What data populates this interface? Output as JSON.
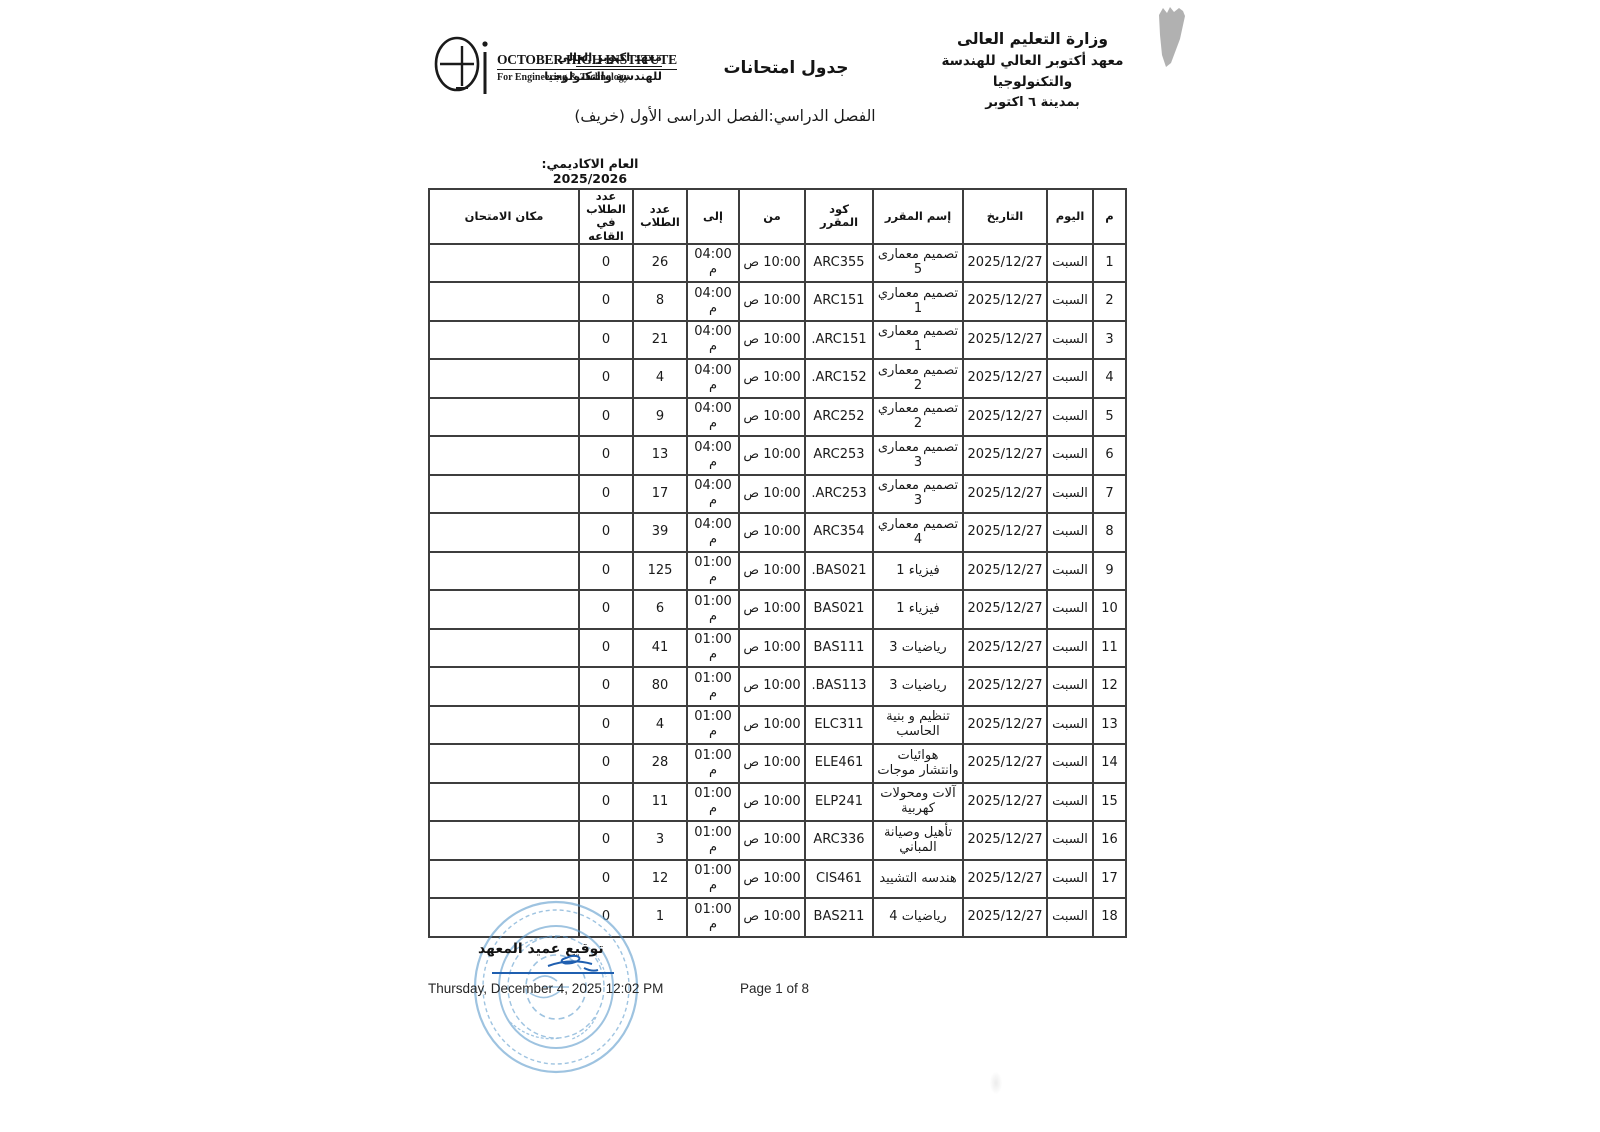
{
  "logo": {
    "name_en": "OCTOBER HIGH INSTITUTE",
    "sub_en": "For Engineering & Technology",
    "name_ar1": "معهد اكتوبر العالى",
    "name_ar2": "للهندسة والتكنولوجيا"
  },
  "header": {
    "doc_title": "جدول امتحانات",
    "ministry_line1": "وزارة التعليم العالى",
    "ministry_line2": "معهد أكتوبر العالي للهندسة والتكنولوجيا",
    "ministry_line3": "بمدينة ٦ اكتوبر",
    "semester_line": "الفصل الدراسي:الفصل الدراسى الأول (خريف)",
    "academic_year_label": "العام الاكاديمي:",
    "academic_year_value": "2025/2026"
  },
  "table": {
    "headers": [
      "مكان الامتحان",
      "عدد الطلاب في القاعه",
      "عدد الطلاب",
      "إلى",
      "من",
      "كود المقرر",
      "إسم المقرر",
      "التاريخ",
      "اليوم",
      "م"
    ],
    "rows": [
      {
        "num": "1",
        "day": "السبت",
        "date": "2025/12/27",
        "course": "تصميم معمارى 5",
        "code": "ARC355",
        "from": "10:00 ص",
        "to": "04:00 م",
        "students": "26",
        "in_hall": "0",
        "location": ""
      },
      {
        "num": "2",
        "day": "السبت",
        "date": "2025/12/27",
        "course": "تصميم معماري 1",
        "code": "ARC151",
        "from": "10:00 ص",
        "to": "04:00 م",
        "students": "8",
        "in_hall": "0",
        "location": ""
      },
      {
        "num": "3",
        "day": "السبت",
        "date": "2025/12/27",
        "course": "تصميم معمارى 1",
        "code": ".ARC151",
        "from": "10:00 ص",
        "to": "04:00 م",
        "students": "21",
        "in_hall": "0",
        "location": ""
      },
      {
        "num": "4",
        "day": "السبت",
        "date": "2025/12/27",
        "course": "تصميم معمارى 2",
        "code": ".ARC152",
        "from": "10:00 ص",
        "to": "04:00 م",
        "students": "4",
        "in_hall": "0",
        "location": ""
      },
      {
        "num": "5",
        "day": "السبت",
        "date": "2025/12/27",
        "course": "تصميم معماري 2",
        "code": "ARC252",
        "from": "10:00 ص",
        "to": "04:00 م",
        "students": "9",
        "in_hall": "0",
        "location": ""
      },
      {
        "num": "6",
        "day": "السبت",
        "date": "2025/12/27",
        "course": "تصميم معمارى 3",
        "code": "ARC253",
        "from": "10:00 ص",
        "to": "04:00 م",
        "students": "13",
        "in_hall": "0",
        "location": ""
      },
      {
        "num": "7",
        "day": "السبت",
        "date": "2025/12/27",
        "course": "تصميم معمارى 3",
        "code": ".ARC253",
        "from": "10:00 ص",
        "to": "04:00 م",
        "students": "17",
        "in_hall": "0",
        "location": ""
      },
      {
        "num": "8",
        "day": "السبت",
        "date": "2025/12/27",
        "course": "تصميم معماري 4",
        "code": "ARC354",
        "from": "10:00 ص",
        "to": "04:00 م",
        "students": "39",
        "in_hall": "0",
        "location": ""
      },
      {
        "num": "9",
        "day": "السبت",
        "date": "2025/12/27",
        "course": "فيزياء 1",
        "code": ".BAS021",
        "from": "10:00 ص",
        "to": "01:00 م",
        "students": "125",
        "in_hall": "0",
        "location": ""
      },
      {
        "num": "10",
        "day": "السبت",
        "date": "2025/12/27",
        "course": "فيزياء 1",
        "code": "BAS021",
        "from": "10:00 ص",
        "to": "01:00 م",
        "students": "6",
        "in_hall": "0",
        "location": ""
      },
      {
        "num": "11",
        "day": "السبت",
        "date": "2025/12/27",
        "course": "رياضيات 3",
        "code": "BAS111",
        "from": "10:00 ص",
        "to": "01:00 م",
        "students": "41",
        "in_hall": "0",
        "location": ""
      },
      {
        "num": "12",
        "day": "السبت",
        "date": "2025/12/27",
        "course": "رياضيات 3",
        "code": ".BAS113",
        "from": "10:00 ص",
        "to": "01:00 م",
        "students": "80",
        "in_hall": "0",
        "location": ""
      },
      {
        "num": "13",
        "day": "السبت",
        "date": "2025/12/27",
        "course": "تنظيم و بنية الحاسب",
        "code": "ELC311",
        "from": "10:00 ص",
        "to": "01:00 م",
        "students": "4",
        "in_hall": "0",
        "location": ""
      },
      {
        "num": "14",
        "day": "السبت",
        "date": "2025/12/27",
        "course": "هوائيات وانتشار موجات",
        "code": "ELE461",
        "from": "10:00 ص",
        "to": "01:00 م",
        "students": "28",
        "in_hall": "0",
        "location": ""
      },
      {
        "num": "15",
        "day": "السبت",
        "date": "2025/12/27",
        "course": "آلات ومحولات كهربية",
        "code": "ELP241",
        "from": "10:00 ص",
        "to": "01:00 م",
        "students": "11",
        "in_hall": "0",
        "location": ""
      },
      {
        "num": "16",
        "day": "السبت",
        "date": "2025/12/27",
        "course": "تأهيل وصيانة المباني",
        "code": "ARC336",
        "from": "10:00 ص",
        "to": "01:00 م",
        "students": "3",
        "in_hall": "0",
        "location": ""
      },
      {
        "num": "17",
        "day": "السبت",
        "date": "2025/12/27",
        "course": "هندسه التشييد",
        "code": "CIS461",
        "from": "10:00 ص",
        "to": "01:00 م",
        "students": "12",
        "in_hall": "0",
        "location": ""
      },
      {
        "num": "18",
        "day": "السبت",
        "date": "2025/12/27",
        "course": "رياضيات 4",
        "code": "BAS211",
        "from": "10:00 ص",
        "to": "01:00 م",
        "students": "1",
        "in_hall": "0",
        "location": ""
      }
    ]
  },
  "footer": {
    "signature_label": "توقيع عميد المعهد",
    "datetime": "Thursday, December 4, 2025 12:02 PM",
    "page_info": "Page 1 of 8"
  },
  "colors": {
    "stamp_blue": "#5e9ccd",
    "signature_blue": "#1f5fb0",
    "border_gray": "#3e3e3e",
    "corner_mark_gray": "#a3a3a3"
  }
}
